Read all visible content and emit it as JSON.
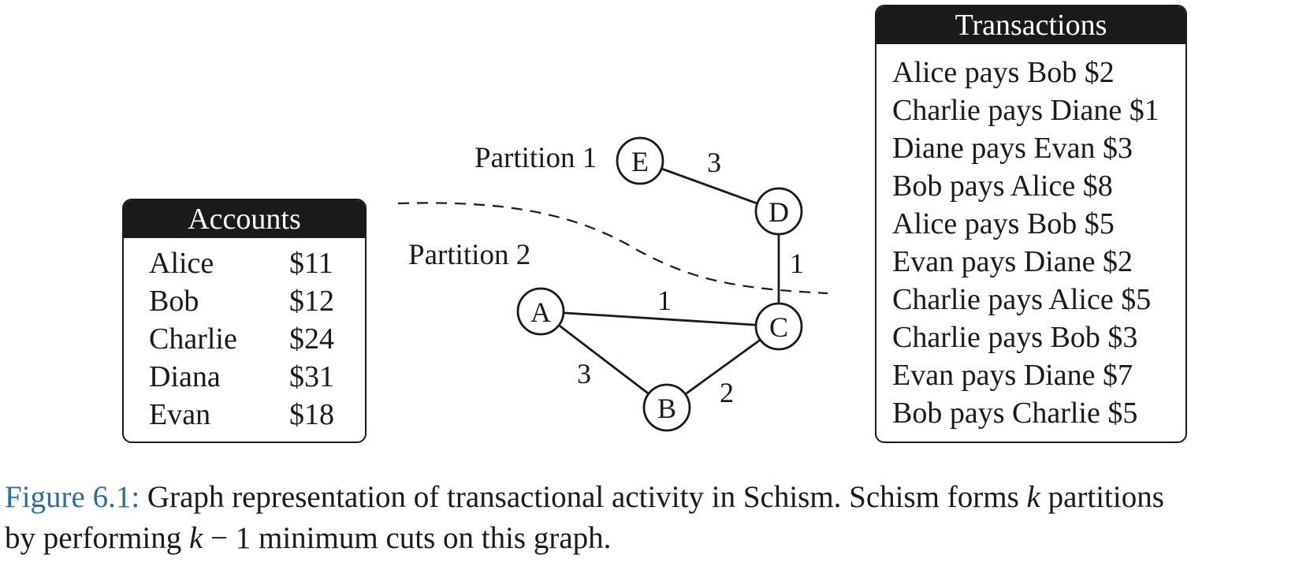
{
  "accounts": {
    "title": "Accounts",
    "rows": [
      {
        "name": "Alice",
        "amount": "$11"
      },
      {
        "name": "Bob",
        "amount": "$12"
      },
      {
        "name": "Charlie",
        "amount": "$24"
      },
      {
        "name": "Diana",
        "amount": "$31"
      },
      {
        "name": "Evan",
        "amount": "$18"
      }
    ]
  },
  "transactions": {
    "title": "Transactions",
    "rows": [
      "Alice pays Bob $2",
      "Charlie pays Diane $1",
      "Diane pays Evan $3",
      "Bob pays Alice $8",
      "Alice pays Bob $5",
      "Evan pays Diane $2",
      "Charlie pays Alice $5",
      "Charlie pays Bob $3",
      "Evan pays Diane $7",
      "Bob pays Charlie $5"
    ]
  },
  "graph": {
    "partition_labels": [
      "Partition 1",
      "Partition 2"
    ],
    "nodes": [
      "E",
      "D",
      "C",
      "A",
      "B"
    ],
    "edges": [
      {
        "from": "E",
        "to": "D",
        "weight": "3"
      },
      {
        "from": "D",
        "to": "C",
        "weight": "1"
      },
      {
        "from": "A",
        "to": "C",
        "weight": "1"
      },
      {
        "from": "A",
        "to": "B",
        "weight": "3"
      },
      {
        "from": "B",
        "to": "C",
        "weight": "2"
      }
    ]
  },
  "caption": {
    "label": "Figure 6.1:",
    "line1_text": " Graph representation of transactional activity in Schism. Schism forms ",
    "k": "k",
    "line1_end": " partitions",
    "line2_start": "by performing ",
    "k_minus_one": " − 1 minimum cuts on this graph."
  }
}
